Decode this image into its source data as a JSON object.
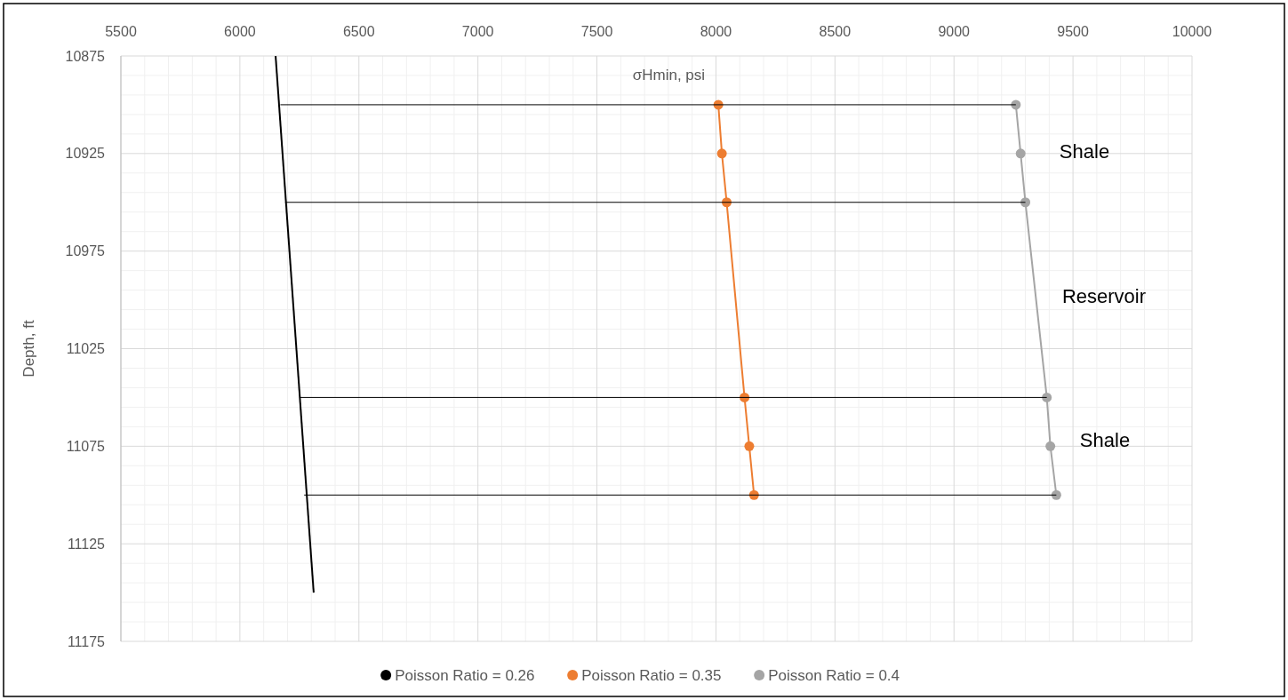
{
  "chart_data": {
    "type": "line",
    "xlabel": "σHmin, psi",
    "ylabel": "Depth, ft",
    "xlim": [
      5500,
      10000
    ],
    "xticks": [
      5500,
      6000,
      6500,
      7000,
      7500,
      8000,
      8500,
      9000,
      9500,
      10000
    ],
    "ylim": [
      11175,
      10875
    ],
    "yticks": [
      10875,
      10925,
      10975,
      11025,
      11075,
      11125,
      11175
    ],
    "grid": true,
    "legend": "bottom",
    "series": [
      {
        "name": "Poisson Ratio = 0.26",
        "color": "#000000",
        "marker": "none",
        "x": [
          6150,
          6310
        ],
        "values": [
          10875,
          11150
        ]
      },
      {
        "name": "Poisson Ratio = 0.35",
        "color": "#ed7d31",
        "marker": "circle",
        "x": [
          8010,
          8025,
          8045,
          8120,
          8140,
          8160
        ],
        "values": [
          10900,
          10925,
          10950,
          11050,
          11075,
          11100
        ]
      },
      {
        "name": "Poisson Ratio = 0.4",
        "color": "#a5a5a5",
        "marker": "circle",
        "x": [
          9260,
          9280,
          9300,
          9390,
          9405,
          9430
        ],
        "values": [
          10900,
          10925,
          10950,
          11050,
          11075,
          11100
        ]
      },
      {
        "color": "#000000",
        "marker": "none",
        "x": [
          6170,
          9260
        ],
        "values": [
          10900,
          10900
        ]
      },
      {
        "color": "#000000",
        "marker": "none",
        "x": [
          6190,
          9300
        ],
        "values": [
          10950,
          10950
        ]
      },
      {
        "color": "#000000",
        "marker": "none",
        "x": [
          6250,
          9390
        ],
        "values": [
          11050,
          11050
        ]
      },
      {
        "color": "#000000",
        "marker": "none",
        "x": [
          6270,
          9430
        ],
        "values": [
          11100,
          11100
        ]
      }
    ],
    "annotations": [
      "Shale",
      "Reservoir",
      "Shale"
    ]
  }
}
